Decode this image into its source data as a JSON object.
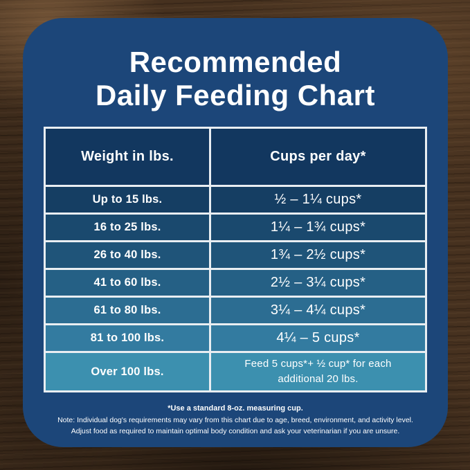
{
  "title": {
    "line1": "Recommended",
    "line2": "Daily Feeding Chart"
  },
  "table": {
    "headers": [
      "Weight in lbs.",
      "Cups per day*"
    ],
    "rows": [
      {
        "weight": "Up to 15 lbs.",
        "cups": "½ – 1¼ cups*"
      },
      {
        "weight": "16 to 25 lbs.",
        "cups": "1¼ – 1¾  cups*"
      },
      {
        "weight": "26 to 40 lbs.",
        "cups": "1¾ – 2½ cups*"
      },
      {
        "weight": "41 to 60 lbs.",
        "cups": "2½ – 3¼ cups*"
      },
      {
        "weight": "61 to 80 lbs.",
        "cups": "3¼ – 4¼ cups*"
      },
      {
        "weight": "81 to 100 lbs.",
        "cups": "4¼ – 5 cups*"
      },
      {
        "weight": "Over 100 lbs.",
        "cups": "Feed 5 cups*+ ½ cup* for each additional 20 lbs."
      }
    ],
    "header_color": "#12375f",
    "row_colors": [
      "#153e63",
      "#1a496e",
      "#1f5479",
      "#256085",
      "#2c6d92",
      "#337ba0",
      "#3c90af"
    ]
  },
  "footnotes": {
    "measuring_cup": "*Use a standard 8-oz. measuring cup.",
    "note_line1": "Note: Individual dog's requirements may vary from this chart due to age, breed, environment, and activity level.",
    "note_line2": "Adjust food as required to maintain optimal body condition and ask your veterinarian if you are unsure."
  },
  "colors": {
    "card_background": "#1c4679",
    "table_border": "#e9eef2",
    "text": "#ffffff",
    "wood_background": "#46311f"
  },
  "chart_data": {
    "type": "table",
    "title": "Recommended Daily Feeding Chart",
    "columns": [
      "Weight in lbs.",
      "Cups per day*"
    ],
    "rows": [
      [
        "Up to 15 lbs.",
        "½ – 1¼ cups*"
      ],
      [
        "16 to 25 lbs.",
        "1¼ – 1¾ cups*"
      ],
      [
        "26 to 40 lbs.",
        "1¾ – 2½ cups*"
      ],
      [
        "41 to 60 lbs.",
        "2½ – 3¼ cups*"
      ],
      [
        "61 to 80 lbs.",
        "3¼ – 4¼ cups*"
      ],
      [
        "81 to 100 lbs.",
        "4¼ – 5 cups*"
      ],
      [
        "Over 100 lbs.",
        "Feed 5 cups*+ ½ cup* for each additional 20 lbs."
      ]
    ],
    "notes": [
      "*Use a standard 8-oz. measuring cup.",
      "Note: Individual dog's requirements may vary from this chart due to age, breed, environment, and activity level.",
      "Adjust food as required to maintain optimal body condition and ask your veterinarian if you are unsure."
    ]
  }
}
